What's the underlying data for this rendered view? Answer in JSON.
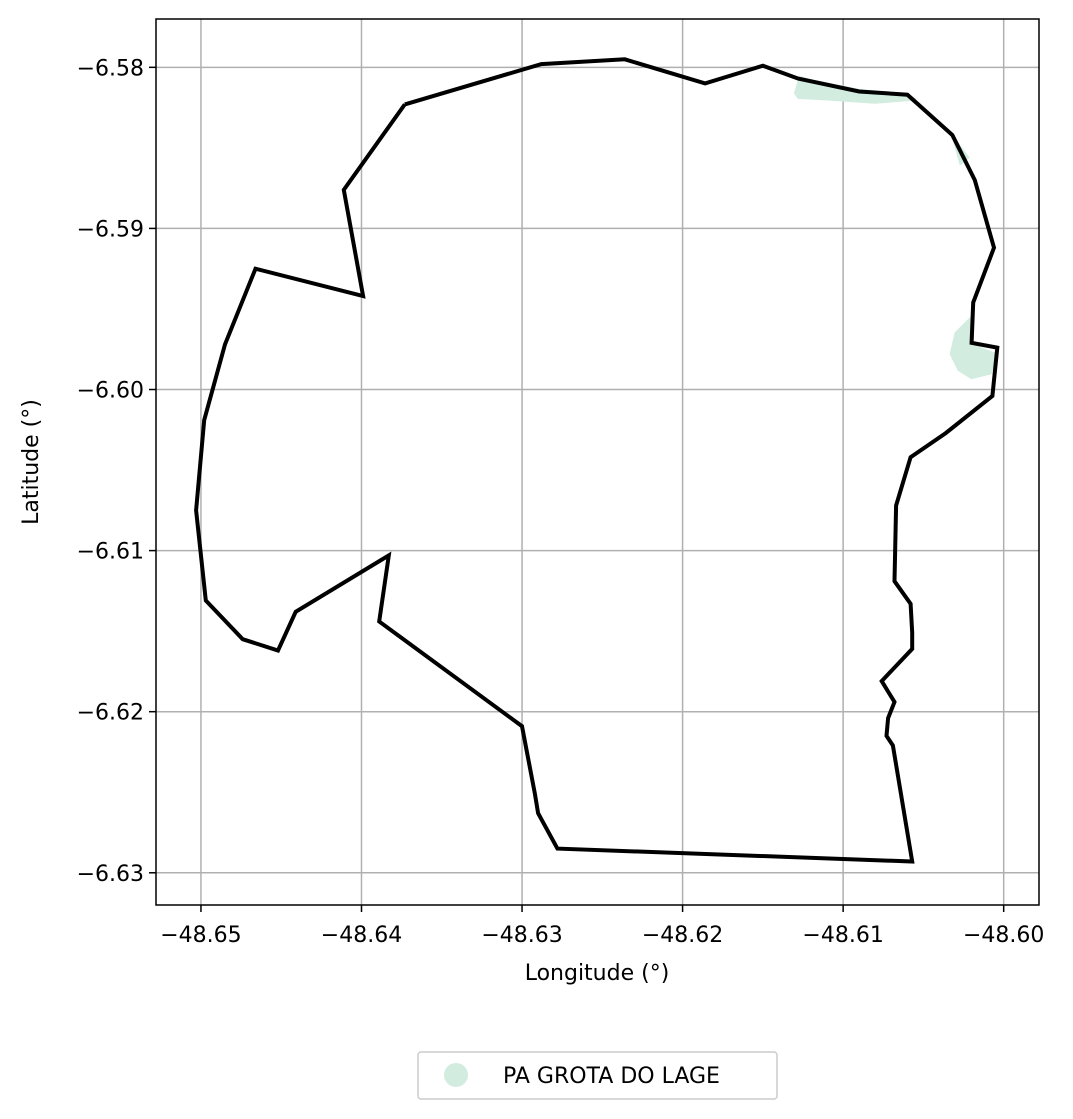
{
  "chart_data": {
    "type": "map",
    "xlabel": "Longitude (°)",
    "ylabel": "Latitude (°)",
    "xlim": [
      -48.6528,
      -48.5978
    ],
    "ylim": [
      -6.632,
      -6.577
    ],
    "xticks": [
      -48.65,
      -48.64,
      -48.63,
      -48.62,
      -48.61,
      -48.6
    ],
    "xtick_labels": [
      "−48.65",
      "−48.64",
      "−48.63",
      "−48.62",
      "−48.61",
      "−48.60"
    ],
    "yticks": [
      -6.58,
      -6.59,
      -6.6,
      -6.61,
      -6.62,
      -6.63
    ],
    "ytick_labels": [
      "−6.58",
      "−6.59",
      "−6.60",
      "−6.61",
      "−6.62",
      "−6.63"
    ],
    "grid": true,
    "legend_position": "bottom-center",
    "legend": [
      {
        "label": "PA GROTA DO LAGE",
        "color": "#d2ece0"
      }
    ],
    "colors": {
      "boundary": "#000000",
      "fill_area": "#d2ece0",
      "grid": "#b0b0b0"
    },
    "fill_areas": [
      {
        "name": "PA GROTA DO LAGE",
        "points": [
          [
            -48.613,
            -6.5816
          ],
          [
            -48.6127,
            -6.5806
          ],
          [
            -48.612,
            -6.5808
          ],
          [
            -48.609,
            -6.5814
          ],
          [
            -48.606,
            -6.5817
          ],
          [
            -48.6055,
            -6.582
          ],
          [
            -48.608,
            -6.5822
          ],
          [
            -48.611,
            -6.582
          ],
          [
            -48.6128,
            -6.5819
          ]
        ]
      },
      {
        "name": "PA GROTA DO LAGE",
        "points": [
          [
            -48.6032,
            -6.5842
          ],
          [
            -48.6028,
            -6.5848
          ],
          [
            -48.6022,
            -6.5856
          ],
          [
            -48.6027,
            -6.586
          ]
        ]
      },
      {
        "name": "PA GROTA DO LAGE",
        "points": [
          [
            -48.602,
            -6.5955
          ],
          [
            -48.603,
            -6.5965
          ],
          [
            -48.6033,
            -6.5978
          ],
          [
            -48.6028,
            -6.5988
          ],
          [
            -48.602,
            -6.5993
          ],
          [
            -48.6008,
            -6.599
          ],
          [
            -48.6005,
            -6.5978
          ],
          [
            -48.602,
            -6.5972
          ],
          [
            -48.602,
            -6.5962
          ]
        ]
      }
    ],
    "boundary": [
      [
        -48.6373,
        -6.5823
      ],
      [
        -48.6288,
        -6.5798
      ],
      [
        -48.6236,
        -6.5795
      ],
      [
        -48.6186,
        -6.581
      ],
      [
        -48.615,
        -6.5799
      ],
      [
        -48.6128,
        -6.5807
      ],
      [
        -48.609,
        -6.5815
      ],
      [
        -48.606,
        -6.5817
      ],
      [
        -48.6032,
        -6.5842
      ],
      [
        -48.6018,
        -6.587
      ],
      [
        -48.6006,
        -6.5912
      ],
      [
        -48.6019,
        -6.5946
      ],
      [
        -48.602,
        -6.5971
      ],
      [
        -48.6004,
        -6.5974
      ],
      [
        -48.6007,
        -6.6004
      ],
      [
        -48.6036,
        -6.6027
      ],
      [
        -48.6058,
        -6.6042
      ],
      [
        -48.6067,
        -6.6072
      ],
      [
        -48.6068,
        -6.6119
      ],
      [
        -48.6058,
        -6.6133
      ],
      [
        -48.6057,
        -6.6151
      ],
      [
        -48.6057,
        -6.6161
      ],
      [
        -48.6076,
        -6.6181
      ],
      [
        -48.6068,
        -6.6194
      ],
      [
        -48.6072,
        -6.6204
      ],
      [
        -48.6073,
        -6.6215
      ],
      [
        -48.6069,
        -6.6221
      ],
      [
        -48.6057,
        -6.6293
      ],
      [
        -48.6278,
        -6.6285
      ],
      [
        -48.629,
        -6.6263
      ],
      [
        -48.6292,
        -6.6251
      ],
      [
        -48.63,
        -6.6209
      ],
      [
        -48.6389,
        -6.6144
      ],
      [
        -48.6383,
        -6.6103
      ],
      [
        -48.6441,
        -6.6138
      ],
      [
        -48.6452,
        -6.6162
      ],
      [
        -48.6474,
        -6.6155
      ],
      [
        -48.6497,
        -6.6131
      ],
      [
        -48.6503,
        -6.6075
      ],
      [
        -48.6498,
        -6.6019
      ],
      [
        -48.6485,
        -6.5972
      ],
      [
        -48.6466,
        -6.5925
      ],
      [
        -48.6399,
        -6.5942
      ],
      [
        -48.6411,
        -6.5876
      ],
      [
        -48.6373,
        -6.5823
      ]
    ]
  }
}
